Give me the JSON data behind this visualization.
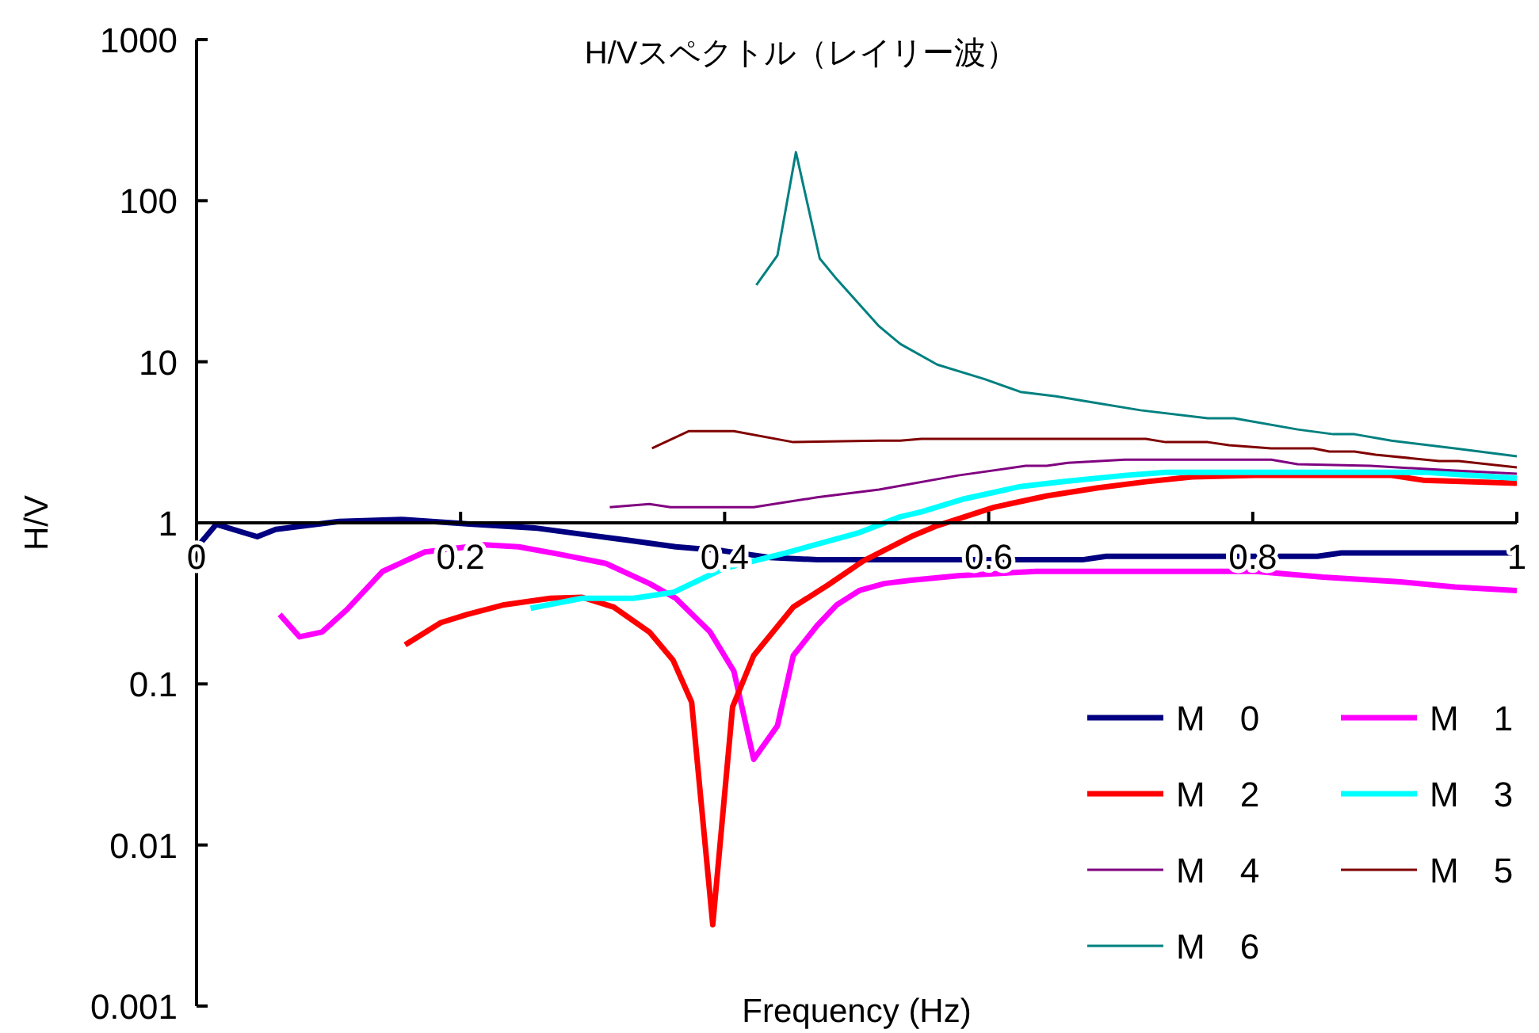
{
  "chart_data": {
    "type": "line",
    "title": "H/Vスペクトル（レイリー波）",
    "xlabel": "Frequency (Hz)",
    "ylabel": "H/V",
    "log": "y",
    "legend": "bottom right",
    "xlim": [
      0,
      1
    ],
    "xticks": [
      0,
      0.2,
      0.4,
      0.6,
      0.8,
      1
    ],
    "ylim": [
      0.001,
      1000
    ],
    "yticks": [
      0.001,
      0.01,
      0.1,
      1,
      10,
      100,
      1000
    ],
    "series": [
      {
        "name": "M　0",
        "color": "#000080",
        "x": [
          0,
          0.015,
          0.046,
          0.06,
          0.108,
          0.155,
          0.209,
          0.256,
          0.292,
          0.327,
          0.363,
          0.399,
          0.434,
          0.47,
          0.493,
          0.565,
          0.636,
          0.671,
          0.689,
          0.849,
          0.867,
          1
        ],
        "values": [
          0.7,
          0.98,
          0.82,
          0.91,
          1.02,
          1.05,
          0.98,
          0.93,
          0.85,
          0.78,
          0.71,
          0.67,
          0.61,
          0.59,
          0.59,
          0.59,
          0.59,
          0.59,
          0.62,
          0.62,
          0.65,
          0.65
        ]
      },
      {
        "name": "M　1",
        "color": "#ff00ff",
        "x": [
          0.063,
          0.078,
          0.095,
          0.114,
          0.141,
          0.173,
          0.218,
          0.244,
          0.274,
          0.31,
          0.343,
          0.363,
          0.389,
          0.407,
          0.422,
          0.44,
          0.452,
          0.47,
          0.485,
          0.502,
          0.521,
          0.541,
          0.577,
          0.636,
          0.802,
          0.853,
          0.912,
          0.953,
          1
        ],
        "values": [
          0.27,
          0.196,
          0.21,
          0.29,
          0.5,
          0.66,
          0.73,
          0.71,
          0.64,
          0.56,
          0.42,
          0.34,
          0.21,
          0.12,
          0.034,
          0.055,
          0.15,
          0.23,
          0.31,
          0.38,
          0.42,
          0.44,
          0.47,
          0.5,
          0.5,
          0.46,
          0.43,
          0.4,
          0.38
        ]
      },
      {
        "name": "M　2",
        "color": "#ff0000",
        "x": [
          0.158,
          0.185,
          0.205,
          0.233,
          0.268,
          0.292,
          0.316,
          0.343,
          0.361,
          0.375,
          0.391,
          0.406,
          0.422,
          0.452,
          0.478,
          0.505,
          0.541,
          0.561,
          0.604,
          0.644,
          0.683,
          0.719,
          0.754,
          0.802,
          0.905,
          0.929,
          1
        ],
        "values": [
          0.175,
          0.24,
          0.27,
          0.31,
          0.34,
          0.345,
          0.3,
          0.21,
          0.14,
          0.077,
          0.0032,
          0.072,
          0.15,
          0.3,
          0.41,
          0.58,
          0.82,
          0.96,
          1.25,
          1.47,
          1.65,
          1.8,
          1.93,
          1.97,
          1.97,
          1.84,
          1.76
        ]
      },
      {
        "name": "M　3",
        "color": "#00ffff",
        "x": [
          0.253,
          0.292,
          0.331,
          0.361,
          0.399,
          0.446,
          0.502,
          0.533,
          0.549,
          0.58,
          0.624,
          0.656,
          0.703,
          0.734,
          0.932,
          1
        ],
        "values": [
          0.295,
          0.34,
          0.34,
          0.37,
          0.52,
          0.65,
          0.87,
          1.09,
          1.17,
          1.4,
          1.68,
          1.8,
          1.97,
          2.06,
          2.06,
          1.89
        ]
      },
      {
        "name": "M　4",
        "color": "#800080",
        "x": [
          0.313,
          0.343,
          0.359,
          0.422,
          0.47,
          0.517,
          0.577,
          0.628,
          0.644,
          0.66,
          0.703,
          0.814,
          0.834,
          0.889,
          0.953,
          1
        ],
        "values": [
          1.25,
          1.31,
          1.25,
          1.25,
          1.44,
          1.61,
          1.97,
          2.26,
          2.26,
          2.36,
          2.47,
          2.47,
          2.31,
          2.26,
          2.11,
          2.02
        ]
      },
      {
        "name": "M　5",
        "color": "#800000",
        "x": [
          0.345,
          0.373,
          0.407,
          0.452,
          0.517,
          0.533,
          0.549,
          0.719,
          0.734,
          0.766,
          0.782,
          0.814,
          0.846,
          0.858,
          0.877,
          0.893,
          0.941,
          0.956,
          1
        ],
        "values": [
          2.9,
          3.71,
          3.71,
          3.17,
          3.24,
          3.24,
          3.32,
          3.32,
          3.17,
          3.17,
          3.03,
          2.9,
          2.9,
          2.77,
          2.77,
          2.65,
          2.42,
          2.42,
          2.21
        ]
      },
      {
        "name": "M　6",
        "color": "#008080",
        "x": [
          0.424,
          0.44,
          0.454,
          0.472,
          0.485,
          0.517,
          0.533,
          0.561,
          0.597,
          0.624,
          0.651,
          0.715,
          0.766,
          0.786,
          0.834,
          0.861,
          0.877,
          0.905,
          0.953,
          1
        ],
        "values": [
          29.9,
          45.8,
          200,
          43.8,
          32.5,
          16.6,
          12.9,
          9.6,
          7.8,
          6.5,
          6.1,
          5.0,
          4.46,
          4.46,
          3.8,
          3.55,
          3.55,
          3.24,
          2.9,
          2.59
        ]
      }
    ]
  }
}
